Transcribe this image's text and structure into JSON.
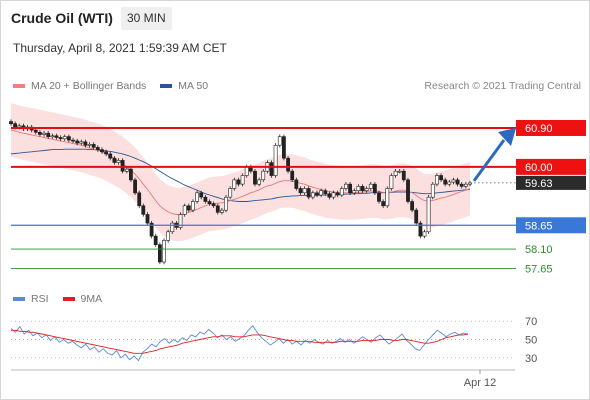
{
  "header": {
    "instrument": "Crude Oil (WTI)",
    "timeframe": "30 MIN",
    "datetime": "Thursday, April 8, 2021 1:59:39 AM CET"
  },
  "legend": {
    "items": [
      {
        "label": "MA 20 + Bollinger Bands",
        "color": "#f08080"
      },
      {
        "label": "MA 50",
        "color": "#2a5599"
      }
    ],
    "copyright": "Research © 2021 Trading Central"
  },
  "rsi_legend": {
    "items": [
      {
        "label": "RSI",
        "color": "#5b8ad8"
      },
      {
        "label": "9MA",
        "color": "#e02020"
      }
    ]
  },
  "chart_data": [
    {
      "type": "candlestick",
      "title": "Crude Oil (WTI)",
      "ylim": [
        57.5,
        61.2
      ],
      "x_tick_labels": [
        "Apr 12"
      ],
      "current_price": "59.63",
      "levels": [
        {
          "value": 60.9,
          "label": "60.90",
          "style": "resistance",
          "color": "#e01010"
        },
        {
          "value": 60.0,
          "label": "60.00",
          "style": "resistance",
          "color": "#e01010"
        },
        {
          "value": 58.65,
          "label": "58.65",
          "style": "support",
          "color": "#3a78d8"
        },
        {
          "value": 58.1,
          "label": "58.10",
          "style": "support-minor",
          "color": "#2e8b2e"
        },
        {
          "value": 57.65,
          "label": "57.65",
          "style": "support-minor",
          "color": "#2e8b2e"
        }
      ],
      "projection": {
        "from": 59.63,
        "to": 60.9,
        "direction": "up"
      },
      "closes": [
        61.0,
        60.92,
        60.95,
        60.88,
        60.92,
        60.85,
        60.8,
        60.75,
        60.78,
        60.7,
        60.72,
        60.68,
        60.65,
        60.7,
        60.62,
        60.6,
        60.55,
        60.58,
        60.5,
        60.52,
        60.45,
        60.4,
        60.35,
        60.3,
        60.2,
        60.1,
        60.15,
        59.9,
        59.95,
        59.7,
        59.4,
        59.1,
        58.9,
        58.7,
        58.4,
        58.2,
        57.8,
        58.3,
        58.5,
        58.7,
        58.6,
        58.9,
        59.1,
        59.0,
        59.2,
        59.4,
        59.3,
        59.2,
        59.15,
        59.1,
        58.95,
        59.0,
        59.3,
        59.5,
        59.7,
        59.6,
        59.8,
        60.0,
        59.9,
        59.6,
        59.7,
        59.9,
        60.1,
        59.8,
        60.5,
        60.7,
        60.2,
        59.9,
        59.7,
        59.5,
        59.4,
        59.5,
        59.3,
        59.4,
        59.35,
        59.45,
        59.38,
        59.3,
        59.4,
        59.35,
        59.5,
        59.6,
        59.4,
        59.45,
        59.55,
        59.45,
        59.5,
        59.6,
        59.4,
        59.2,
        59.1,
        59.5,
        59.8,
        59.9,
        59.9,
        59.7,
        59.2,
        59.0,
        58.7,
        58.4,
        58.5,
        59.3,
        59.6,
        59.8,
        59.7,
        59.6,
        59.65,
        59.7,
        59.6,
        59.55,
        59.6,
        59.63
      ],
      "ma20": [
        60.85,
        60.83,
        60.8,
        60.78,
        60.76,
        60.74,
        60.72,
        60.7,
        60.68,
        60.66,
        60.64,
        60.62,
        60.6,
        60.58,
        60.56,
        60.54,
        60.52,
        60.5,
        60.47,
        60.44,
        60.41,
        60.38,
        60.35,
        60.3,
        60.25,
        60.2,
        60.14,
        60.08,
        60.0,
        59.92,
        59.83,
        59.72,
        59.6,
        59.48,
        59.35,
        59.22,
        59.1,
        59.02,
        58.96,
        58.92,
        58.9,
        58.9,
        58.92,
        58.95,
        58.98,
        59.02,
        59.06,
        59.1,
        59.13,
        59.15,
        59.16,
        59.17,
        59.19,
        59.22,
        59.25,
        59.28,
        59.32,
        59.36,
        59.4,
        59.43,
        59.47,
        59.52,
        59.56,
        59.58,
        59.62,
        59.66,
        59.68,
        59.68,
        59.67,
        59.65,
        59.62,
        59.6,
        59.56,
        59.53,
        59.5,
        59.48,
        59.45,
        59.43,
        59.42,
        59.41,
        59.4,
        59.4,
        59.4,
        59.4,
        59.41,
        59.42,
        59.43,
        59.44,
        59.44,
        59.43,
        59.41,
        59.41,
        59.42,
        59.44,
        59.46,
        59.46,
        59.44,
        59.4,
        59.34,
        59.27,
        59.22,
        59.21,
        59.22,
        59.25,
        59.28,
        59.3,
        59.33,
        59.36,
        59.4,
        59.43,
        59.46,
        59.5
      ],
      "bb_width": 0.62,
      "ma50": [
        60.3,
        60.31,
        60.32,
        60.33,
        60.34,
        60.35,
        60.36,
        60.37,
        60.38,
        60.39,
        60.4,
        60.4,
        60.4,
        60.41,
        60.41,
        60.41,
        60.41,
        60.41,
        60.41,
        60.4,
        60.4,
        60.39,
        60.38,
        60.37,
        60.36,
        60.34,
        60.32,
        60.3,
        60.27,
        60.24,
        60.2,
        60.16,
        60.12,
        60.07,
        60.02,
        59.96,
        59.9,
        59.84,
        59.78,
        59.73,
        59.68,
        59.63,
        59.58,
        59.54,
        59.5,
        59.46,
        59.42,
        59.38,
        59.35,
        59.32,
        59.29,
        59.26,
        59.24,
        59.22,
        59.21,
        59.2,
        59.2,
        59.2,
        59.21,
        59.22,
        59.23,
        59.24,
        59.25,
        59.26,
        59.28,
        59.3,
        59.31,
        59.32,
        59.33,
        59.33,
        59.34,
        59.34,
        59.34,
        59.34,
        59.34,
        59.35,
        59.35,
        59.35,
        59.35,
        59.36,
        59.36,
        59.37,
        59.37,
        59.38,
        59.38,
        59.39,
        59.39,
        59.4,
        59.4,
        59.4,
        59.4,
        59.41,
        59.41,
        59.42,
        59.42,
        59.42,
        59.42,
        59.41,
        59.4,
        59.39,
        59.38,
        59.38,
        59.39,
        59.4,
        59.41,
        59.42,
        59.43,
        59.44,
        59.45,
        59.46,
        59.47,
        59.48
      ]
    },
    {
      "type": "line",
      "title": "RSI",
      "ylim": [
        20,
        80
      ],
      "y_tick_labels": [
        "70",
        "50",
        "30"
      ],
      "y_ticks": [
        70,
        50,
        30
      ],
      "series": [
        {
          "name": "RSI",
          "color": "#5b8ad8",
          "values": [
            62,
            58,
            64,
            56,
            60,
            54,
            57,
            52,
            55,
            49,
            53,
            47,
            50,
            46,
            48,
            44,
            41,
            45,
            39,
            42,
            36,
            40,
            35,
            33,
            38,
            30,
            34,
            28,
            32,
            27,
            36,
            40,
            45,
            42,
            48,
            51,
            46,
            50,
            47,
            52,
            49,
            55,
            53,
            58,
            56,
            61,
            57,
            52,
            55,
            50,
            53,
            48,
            51,
            54,
            60,
            65,
            58,
            52,
            48,
            44,
            47,
            51,
            46,
            50,
            45,
            48,
            44,
            49,
            46,
            50,
            47,
            45,
            49,
            46,
            48,
            51,
            47,
            50,
            46,
            49,
            53,
            50,
            47,
            52,
            55,
            50,
            45,
            48,
            52,
            56,
            49,
            45,
            40,
            38,
            44,
            50,
            55,
            60,
            57,
            53,
            56,
            58,
            55,
            57,
            56
          ]
        },
        {
          "name": "9MA",
          "color": "#e02020",
          "values": [
            60,
            60,
            59,
            59,
            58,
            58,
            57,
            56,
            55,
            54,
            53,
            52,
            51,
            50,
            49,
            48,
            47,
            46,
            45,
            44,
            43,
            42,
            41,
            40,
            39,
            38,
            37,
            36,
            35,
            35,
            35,
            36,
            37,
            38,
            40,
            41,
            42,
            43,
            44,
            46,
            47,
            48,
            49,
            50,
            51,
            52,
            53,
            53,
            54,
            54,
            54,
            53,
            53,
            53,
            54,
            55,
            55,
            55,
            54,
            53,
            52,
            51,
            50,
            49,
            49,
            48,
            48,
            48,
            48,
            47,
            47,
            47,
            47,
            47,
            47,
            48,
            48,
            48,
            48,
            48,
            49,
            49,
            49,
            49,
            50,
            50,
            50,
            49,
            49,
            50,
            50,
            49,
            48,
            47,
            46,
            46,
            47,
            48,
            50,
            52,
            53,
            54,
            55,
            55,
            56
          ]
        }
      ]
    }
  ]
}
